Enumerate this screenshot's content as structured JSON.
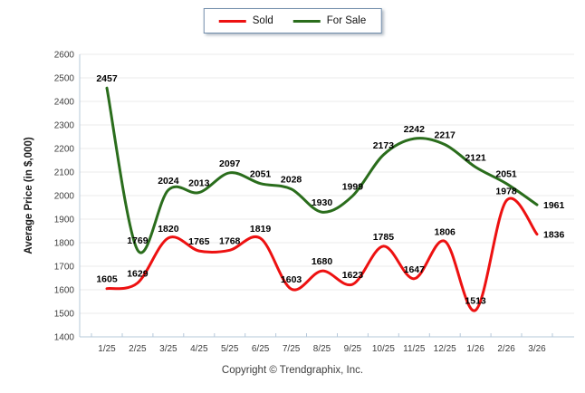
{
  "footer": {
    "copyright_text": "Copyright © Trendgraphix, Inc."
  },
  "chart_data": {
    "type": "line",
    "categories": [
      "1/25",
      "2/25",
      "3/25",
      "4/25",
      "5/25",
      "6/25",
      "7/25",
      "8/25",
      "9/25",
      "10/25",
      "11/25",
      "12/25",
      "1/26",
      "2/26",
      "3/26"
    ],
    "series": [
      {
        "name": "Sold",
        "color": "#ed1111",
        "values": [
          1605,
          1629,
          1820,
          1765,
          1768,
          1819,
          1603,
          1680,
          1623,
          1785,
          1647,
          1806,
          1513,
          1978,
          1836
        ]
      },
      {
        "name": "For Sale",
        "color": "#2a6d1c",
        "values": [
          2457,
          1769,
          2024,
          2013,
          2097,
          2051,
          2028,
          1930,
          1999,
          2173,
          2242,
          2217,
          2121,
          2051,
          1961
        ]
      }
    ],
    "title": "",
    "xlabel": "",
    "ylabel": "Average Price (in $,000)",
    "ylim": [
      1400,
      2600
    ],
    "ytick_step": 100,
    "grid": true,
    "legend_position": "top-center",
    "data_labels": true,
    "colors": {
      "grid": "#ebebeb",
      "axis": "#b6c8da",
      "tick": "#b6c8da",
      "tick_text": "#3d3d3d",
      "data_label_text": "#000000"
    }
  }
}
